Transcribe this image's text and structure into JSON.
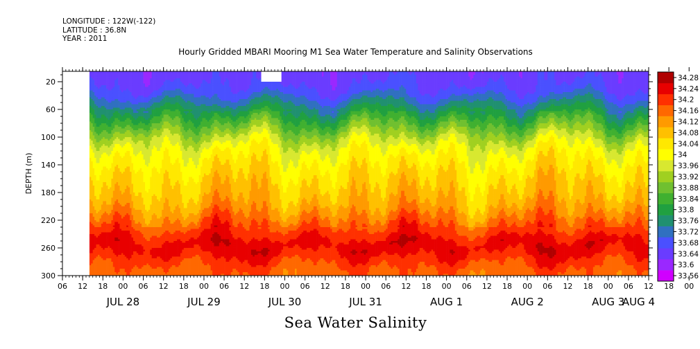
{
  "header": {
    "longitude": "LONGITUDE : 122W(-122)",
    "latitude": "LATITUDE : 36.8N",
    "year": "YEAR : 2011"
  },
  "chart_data": {
    "type": "heatmap",
    "title": "Hourly Gridded MBARI Mooring M1 Sea Water Temperature and Salinity Observations",
    "bottom_title": "Sea Water Salinity",
    "ylabel": "DEPTH (m)",
    "xlabel": "",
    "ylim": [
      300,
      5
    ],
    "y_ticks": [
      20,
      60,
      100,
      140,
      180,
      220,
      260,
      300
    ],
    "x_hour_ticks": [
      "06",
      "12",
      "18",
      "00",
      "06",
      "12",
      "18",
      "00",
      "06",
      "12",
      "18",
      "00",
      "06",
      "12",
      "18",
      "00",
      "06",
      "12",
      "18",
      "00",
      "06",
      "12",
      "18",
      "00",
      "06",
      "12",
      "18",
      "00",
      "06",
      "12",
      "18",
      "00",
      "06"
    ],
    "x_date_labels": [
      "JUL 28",
      "JUL 29",
      "JUL 30",
      "JUL 31",
      "AUG  1",
      "AUG  2",
      "AUG  3",
      "AUG  4"
    ],
    "x_range_hours": [
      0,
      174
    ],
    "data_start_hour": 8,
    "missing_blocks": [
      {
        "t0": 0,
        "t1": 8,
        "d0": 5,
        "d1": 300
      },
      {
        "t0": 59,
        "t1": 65,
        "d0": 5,
        "d1": 20
      }
    ],
    "colorbar": {
      "levels": [
        33.56,
        33.6,
        33.64,
        33.68,
        33.72,
        33.76,
        33.8,
        33.84,
        33.88,
        33.92,
        33.96,
        34,
        34.04,
        34.08,
        34.12,
        34.16,
        34.2,
        34.24,
        34.28
      ],
      "labels": [
        "33.56",
        "33.6",
        "33.64",
        "33.68",
        "33.72",
        "33.76",
        "33.8",
        "33.84",
        "33.88",
        "33.92",
        "33.96",
        "34",
        "34.04",
        "34.08",
        "34.12",
        "34.16",
        "34.2",
        "34.24",
        "34.28"
      ],
      "colors": [
        "#d000ff",
        "#9a28ff",
        "#6a3cff",
        "#4a50ff",
        "#3070c0",
        "#209070",
        "#20a040",
        "#40b030",
        "#70c030",
        "#a0d020",
        "#d8e830",
        "#ffff00",
        "#ffe800",
        "#ffc000",
        "#ff9a00",
        "#ff6800",
        "#ff3000",
        "#e80000",
        "#b00000"
      ]
    },
    "depth_profile": [
      {
        "depth": 5,
        "value": 33.66
      },
      {
        "depth": 20,
        "value": 33.67
      },
      {
        "depth": 35,
        "value": 33.7
      },
      {
        "depth": 50,
        "value": 33.76
      },
      {
        "depth": 60,
        "value": 33.8
      },
      {
        "depth": 75,
        "value": 33.86
      },
      {
        "depth": 90,
        "value": 33.92
      },
      {
        "depth": 105,
        "value": 33.98
      },
      {
        "depth": 120,
        "value": 34.02
      },
      {
        "depth": 140,
        "value": 34.05
      },
      {
        "depth": 160,
        "value": 34.08
      },
      {
        "depth": 180,
        "value": 34.1
      },
      {
        "depth": 200,
        "value": 34.13
      },
      {
        "depth": 220,
        "value": 34.18
      },
      {
        "depth": 240,
        "value": 34.23
      },
      {
        "depth": 255,
        "value": 34.27
      },
      {
        "depth": 270,
        "value": 34.24
      },
      {
        "depth": 285,
        "value": 34.2
      },
      {
        "depth": 300,
        "value": 34.18
      }
    ]
  }
}
